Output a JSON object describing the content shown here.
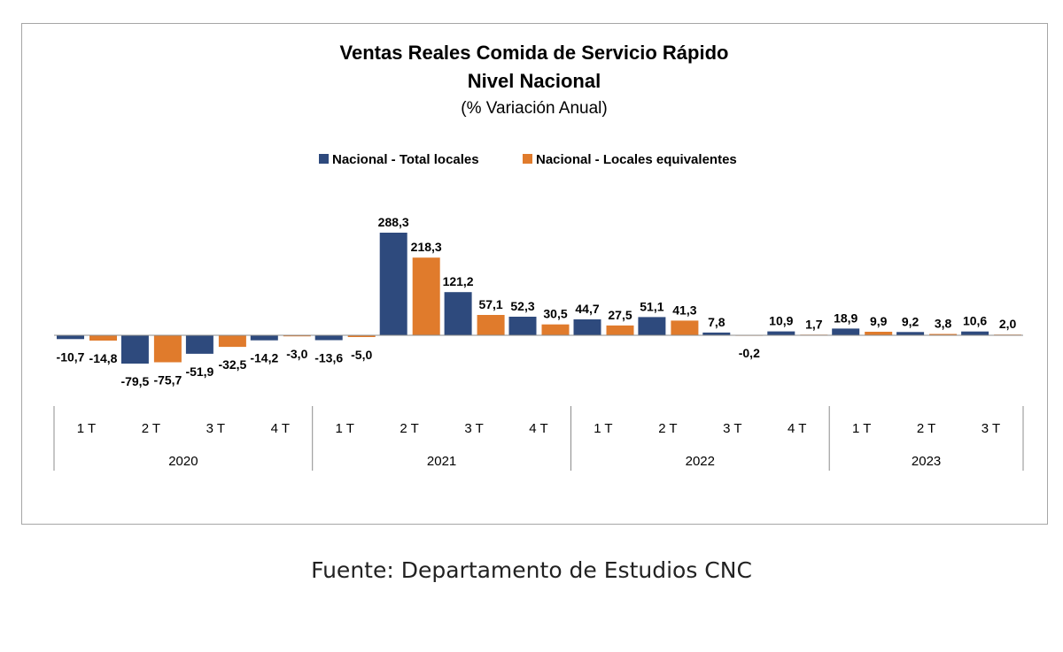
{
  "chart_data": {
    "type": "bar",
    "title": "Ventas Reales Comida de Servicio Rápido",
    "subtitle": "Nivel Nacional",
    "subtitle2": "(% Variación Anual)",
    "quarters": [
      "1 T",
      "2 T",
      "3 T",
      "4 T",
      "1 T",
      "2 T",
      "3 T",
      "4 T",
      "1 T",
      "2 T",
      "3 T",
      "4 T",
      "1 T",
      "2 T",
      "3 T"
    ],
    "years": [
      {
        "label": "2020",
        "quarters": 4
      },
      {
        "label": "2021",
        "quarters": 4
      },
      {
        "label": "2022",
        "quarters": 4
      },
      {
        "label": "2023",
        "quarters": 3
      }
    ],
    "series": [
      {
        "name": "Nacional - Total locales",
        "color": "#2e4a7d",
        "values": [
          -10.7,
          -79.5,
          -51.9,
          -14.2,
          -13.6,
          288.3,
          121.2,
          52.3,
          44.7,
          51.1,
          7.8,
          10.9,
          18.9,
          9.2,
          10.6
        ],
        "labels": [
          "-10,7",
          "-79,5",
          "-51,9",
          "-14,2",
          "-13,6",
          "288,3",
          "121,2",
          "52,3",
          "44,7",
          "51,1",
          "7,8",
          "10,9",
          "18,9",
          "9,2",
          "10,6"
        ]
      },
      {
        "name": "Nacional - Locales equivalentes",
        "color": "#e07b2c",
        "values": [
          -14.8,
          -75.7,
          -32.5,
          -3.0,
          -5.0,
          218.3,
          57.1,
          30.5,
          27.5,
          41.3,
          -0.2,
          1.7,
          9.9,
          3.8,
          2.0
        ],
        "labels": [
          "-14,8",
          "-75,7",
          "-32,5",
          "-3,0",
          "-5,0",
          "218,3",
          "57,1",
          "30,5",
          "27,5",
          "41,3",
          "-0,2",
          "1,7",
          "9,9",
          "3,8",
          "2,0"
        ]
      }
    ],
    "legend_position": "top",
    "grid": false
  },
  "source_note": "Fuente: Departamento de Estudios CNC"
}
